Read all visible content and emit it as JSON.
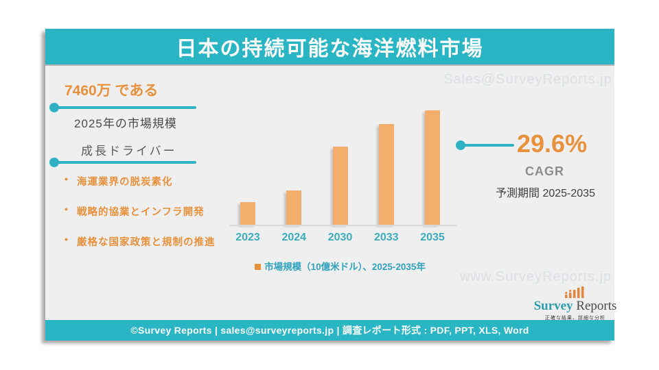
{
  "header": {
    "title": "日本の持続可能な海洋燃料市場"
  },
  "left_panel": {
    "market_value_headline": "7460万 である",
    "market_value_caption": "2025年の市場規模",
    "drivers_heading": "成長ドライバー",
    "drivers": [
      "海運業界の脱炭素化",
      "戦略的協業とインフラ開発",
      "厳格な国家政策と規制の推進"
    ]
  },
  "chart_data": {
    "type": "bar",
    "categories": [
      "2023",
      "2024",
      "2030",
      "2033",
      "2035"
    ],
    "values": [
      20,
      30,
      68,
      88,
      100
    ],
    "title": "",
    "xlabel": "",
    "ylabel": "",
    "ylim": [
      0,
      100
    ],
    "grid": false,
    "legend_label": "市場規模（10億米ドル）、2025-2035年",
    "legend_position": "bottom",
    "bar_color": "#f3ae6c"
  },
  "right_panel": {
    "cagr_value": "29.6%",
    "cagr_label": "CAGR",
    "forecast_period": "予測期間 2025-2035"
  },
  "watermarks": {
    "top_right": "Sales@SurveyReports.jp",
    "bottom_right": "www.SurveyReports.jp"
  },
  "logo": {
    "word_primary": "Survey",
    "word_secondary": " Reports",
    "tagline": "正確な結果、詳細な分析"
  },
  "footer": {
    "text": "©Survey Reports | sales@surveyreports.jp |  調査レポート形式 : PDF, PPT, XLS, Word"
  },
  "colors": {
    "teal": "#29b5c3",
    "orange_text": "#e8913c",
    "bar_orange": "#f3ae6c",
    "gray_text": "#8c8c8c",
    "dark_text": "#4a4a4a",
    "watermark": "#dcdfe3",
    "card_bg": "#efeff0"
  }
}
